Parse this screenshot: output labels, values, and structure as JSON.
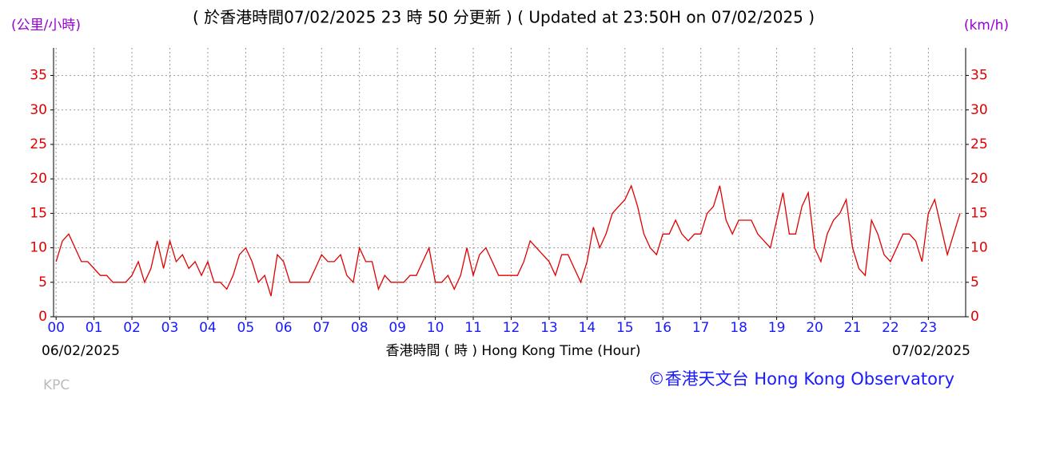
{
  "chart_data": {
    "type": "line",
    "title": "( 於香港時間07/02/2025 23 時 50 分更新 ) ( Updated at 23:50H on 07/02/2025 )",
    "y_label": "(公里/小時)",
    "y2_label": "(km/h)",
    "x_label": "香港時間 ( 時 ) Hong Kong Time (Hour)",
    "start_date": "06/02/2025",
    "end_date": "07/02/2025",
    "station": "KPC",
    "credit": "©香港天文台 Hong Kong Observatory",
    "grid": true,
    "xlim": [
      -4,
      1439
    ],
    "ylim": [
      0,
      39
    ],
    "y2lim": [
      0,
      39
    ],
    "xticks": [
      {
        "value": 0,
        "label": "00"
      },
      {
        "value": 60,
        "label": "01"
      },
      {
        "value": 120,
        "label": "02"
      },
      {
        "value": 180,
        "label": "03"
      },
      {
        "value": 240,
        "label": "04"
      },
      {
        "value": 300,
        "label": "05"
      },
      {
        "value": 360,
        "label": "06"
      },
      {
        "value": 420,
        "label": "07"
      },
      {
        "value": 480,
        "label": "08"
      },
      {
        "value": 540,
        "label": "09"
      },
      {
        "value": 600,
        "label": "10"
      },
      {
        "value": 660,
        "label": "11"
      },
      {
        "value": 720,
        "label": "12"
      },
      {
        "value": 780,
        "label": "13"
      },
      {
        "value": 840,
        "label": "14"
      },
      {
        "value": 900,
        "label": "15"
      },
      {
        "value": 960,
        "label": "16"
      },
      {
        "value": 1020,
        "label": "17"
      },
      {
        "value": 1080,
        "label": "18"
      },
      {
        "value": 1140,
        "label": "19"
      },
      {
        "value": 1200,
        "label": "20"
      },
      {
        "value": 1260,
        "label": "21"
      },
      {
        "value": 1320,
        "label": "22"
      },
      {
        "value": 1380,
        "label": "23"
      }
    ],
    "yticks": [
      0,
      5,
      10,
      15,
      20,
      25,
      30,
      35
    ],
    "y2ticks": [
      0,
      5,
      10,
      15,
      20,
      25,
      30,
      35
    ],
    "x": [
      0,
      10,
      20,
      30,
      40,
      50,
      60,
      70,
      80,
      90,
      100,
      110,
      120,
      130,
      140,
      150,
      160,
      170,
      180,
      190,
      200,
      210,
      220,
      230,
      240,
      250,
      260,
      270,
      280,
      290,
      300,
      310,
      320,
      330,
      340,
      350,
      360,
      370,
      380,
      390,
      400,
      410,
      420,
      430,
      440,
      450,
      460,
      470,
      480,
      490,
      500,
      510,
      520,
      530,
      540,
      550,
      560,
      570,
      580,
      590,
      600,
      610,
      620,
      630,
      640,
      650,
      660,
      670,
      680,
      690,
      700,
      710,
      720,
      730,
      740,
      750,
      760,
      770,
      780,
      790,
      800,
      810,
      820,
      830,
      840,
      850,
      860,
      870,
      880,
      890,
      900,
      910,
      920,
      930,
      940,
      950,
      960,
      970,
      980,
      990,
      1000,
      1010,
      1020,
      1030,
      1040,
      1050,
      1060,
      1070,
      1080,
      1090,
      1100,
      1110,
      1120,
      1130,
      1140,
      1150,
      1160,
      1170,
      1180,
      1190,
      1200,
      1210,
      1220,
      1230,
      1240,
      1250,
      1260,
      1270,
      1280,
      1290,
      1300,
      1310,
      1320,
      1330,
      1340,
      1350,
      1360,
      1370,
      1380,
      1390,
      1400,
      1410,
      1420,
      1430
    ],
    "series": [
      {
        "color": "#e00000",
        "values": [
          8,
          11,
          12,
          10,
          8,
          8,
          7,
          6,
          6,
          5,
          5,
          5,
          6,
          8,
          5,
          7,
          11,
          7,
          11,
          8,
          9,
          7,
          8,
          6,
          8,
          5,
          5,
          4,
          6,
          9,
          10,
          8,
          5,
          6,
          3,
          9,
          8,
          5,
          5,
          5,
          5,
          7,
          9,
          8,
          8,
          9,
          6,
          5,
          10,
          8,
          8,
          4,
          6,
          5,
          5,
          5,
          6,
          6,
          8,
          10,
          5,
          5,
          6,
          4,
          6,
          10,
          6,
          9,
          10,
          8,
          6,
          6,
          6,
          6,
          8,
          11,
          10,
          9,
          8,
          6,
          9,
          9,
          7,
          5,
          8,
          13,
          10,
          12,
          15,
          16,
          17,
          19,
          16,
          12,
          10,
          9,
          12,
          12,
          14,
          12,
          11,
          12,
          12,
          15,
          16,
          19,
          14,
          12,
          14,
          14,
          14,
          12,
          11,
          10,
          14,
          18,
          12,
          12,
          16,
          18,
          10,
          8,
          12,
          14,
          15,
          17,
          10,
          7,
          6,
          14,
          12,
          9,
          8,
          10,
          12,
          12,
          11,
          8,
          15,
          17,
          13,
          9,
          12,
          15
        ]
      }
    ]
  }
}
